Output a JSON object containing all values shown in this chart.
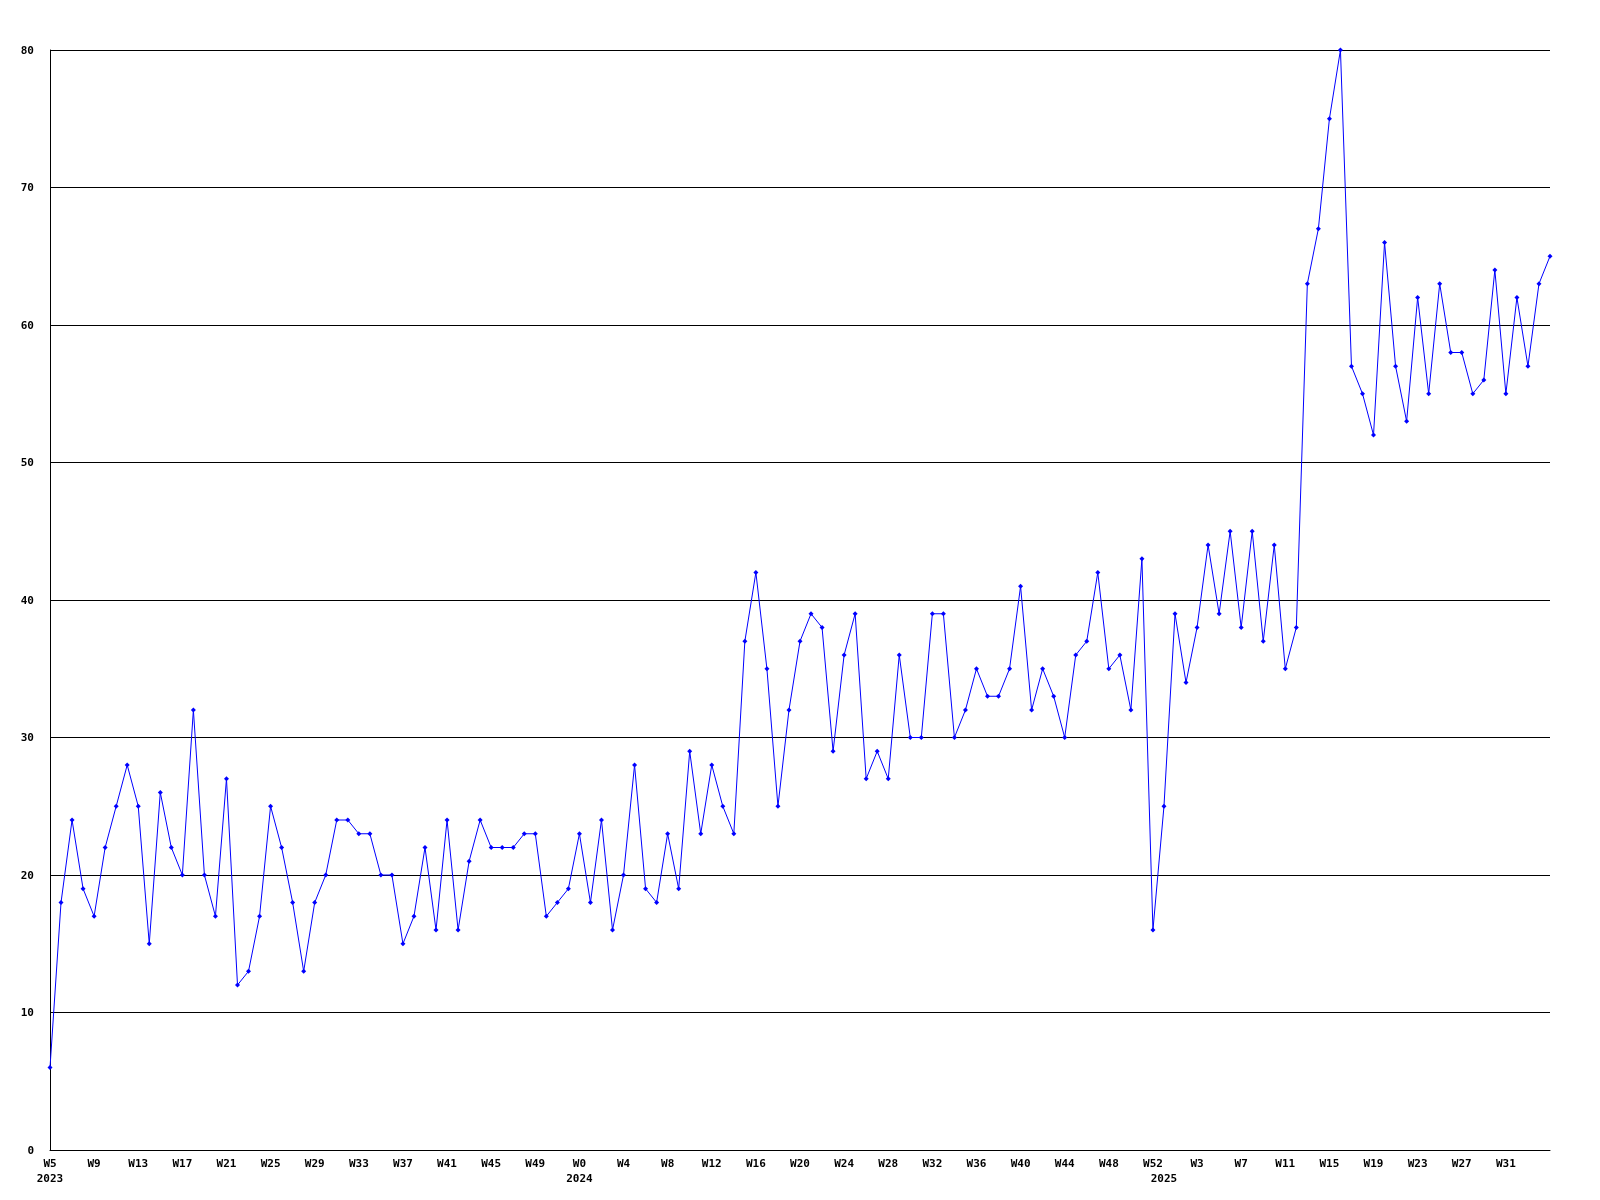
{
  "chart_data": {
    "type": "line",
    "categories": [
      "W5\n2023",
      null,
      null,
      null,
      "W9",
      null,
      null,
      null,
      "W13",
      null,
      null,
      null,
      "W17",
      null,
      null,
      null,
      "W21",
      null,
      null,
      null,
      "W25",
      null,
      null,
      null,
      "W29",
      null,
      null,
      null,
      "W33",
      null,
      null,
      null,
      "W37",
      null,
      null,
      null,
      "W41",
      null,
      null,
      null,
      "W45",
      null,
      null,
      null,
      "W49",
      null,
      null,
      null,
      "W0\n2024",
      null,
      null,
      null,
      "W4",
      null,
      null,
      null,
      "W8",
      null,
      null,
      null,
      "W12",
      null,
      null,
      null,
      "W16",
      null,
      null,
      null,
      "W20",
      null,
      null,
      null,
      "W24",
      null,
      null,
      null,
      "W28",
      null,
      null,
      null,
      "W32",
      null,
      null,
      null,
      "W36",
      null,
      null,
      null,
      "W40",
      null,
      null,
      null,
      "W44",
      null,
      null,
      null,
      "W48",
      null,
      null,
      null,
      "W52",
      "\n2025",
      null,
      null,
      "W3",
      null,
      null,
      null,
      "W7",
      null,
      null,
      null,
      "W11",
      null,
      null,
      null,
      "W15",
      null,
      null,
      null,
      "W19",
      null,
      null,
      null,
      "W23",
      null,
      null,
      null,
      "W27",
      null,
      null,
      null,
      "W31",
      null,
      null,
      null,
      null
    ],
    "series": [
      {
        "color": "#0000ff",
        "values": [
          6,
          18,
          24,
          19,
          17,
          22,
          25,
          28,
          25,
          15,
          26,
          22,
          20,
          32,
          20,
          17,
          27,
          12,
          13,
          17,
          25,
          22,
          18,
          13,
          18,
          20,
          24,
          24,
          23,
          23,
          20,
          20,
          15,
          17,
          22,
          16,
          24,
          16,
          21,
          24,
          22,
          22,
          22,
          23,
          23,
          17,
          18,
          19,
          23,
          18,
          24,
          16,
          20,
          28,
          19,
          18,
          23,
          19,
          29,
          23,
          28,
          25,
          23,
          37,
          42,
          35,
          25,
          32,
          37,
          39,
          38,
          29,
          36,
          39,
          27,
          29,
          27,
          36,
          30,
          30,
          39,
          39,
          30,
          32,
          35,
          33,
          33,
          35,
          41,
          32,
          35,
          33,
          30,
          36,
          37,
          42,
          35,
          36,
          32,
          43,
          16,
          25,
          39,
          34,
          38,
          44,
          39,
          45,
          38,
          45,
          37,
          44,
          35,
          38,
          63,
          67,
          75,
          80,
          57,
          55,
          52,
          66,
          57,
          53,
          62,
          55,
          63,
          58,
          58,
          55,
          56,
          64,
          55,
          62,
          57,
          63,
          65
        ]
      }
    ],
    "ylim": [
      0,
      80
    ],
    "yticks": [
      0,
      10,
      20,
      30,
      40,
      50,
      60,
      70,
      80
    ],
    "grid": "y",
    "marker": "diamond",
    "line_style": "solid"
  }
}
